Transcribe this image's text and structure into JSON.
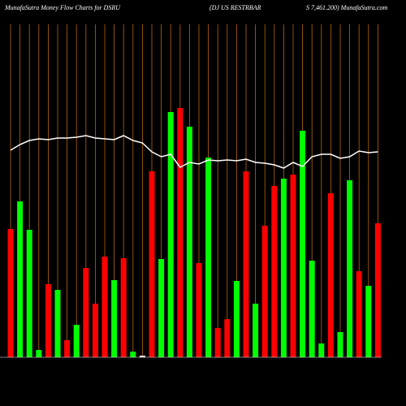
{
  "chart_data": {
    "type": "bar",
    "title": "MunafaSutra  Money Flow  Charts for DSRU",
    "subtitle": "(DJ US RESTRBAR",
    "title_right": "S 7,461.200) MunafaSutra.com",
    "categories": [
      null,
      null,
      null,
      null,
      null,
      null,
      null,
      null,
      null,
      null,
      null,
      null,
      null,
      null,
      null,
      null,
      null,
      null,
      null,
      null,
      null,
      null,
      null,
      null,
      null,
      null,
      null,
      null,
      null,
      null,
      null,
      null,
      null,
      null,
      null,
      null,
      null,
      null,
      null,
      null
    ],
    "values": [
      39.5,
      48,
      39.25,
      2.25,
      22.5,
      20.75,
      5.25,
      10,
      27.5,
      16.5,
      31,
      23.75,
      30.5,
      1.75,
      0.5,
      57.25,
      30.25,
      75.5,
      76.75,
      71,
      29,
      61.5,
      9,
      11.75,
      23.5,
      57.25,
      16.5,
      40.5,
      52.75,
      55,
      56.25,
      69.75,
      29.75,
      4.25,
      50.5,
      7.75,
      54.5,
      26.5,
      22,
      41.25
    ],
    "bar_colors": [
      "#ff0000",
      "#00ff00",
      "#00ff00",
      "#00ff00",
      "#ff0000",
      "#00ff00",
      "#ff0000",
      "#00ff00",
      "#ff0000",
      "#ff0000",
      "#ff0000",
      "#00ff00",
      "#ff0000",
      "#00ff00",
      "#ffffff",
      "#ff0000",
      "#00ff00",
      "#00ff00",
      "#ff0000",
      "#00ff00",
      "#ff0000",
      "#00ff00",
      "#ff0000",
      "#ff0000",
      "#00ff00",
      "#ff0000",
      "#00ff00",
      "#ff0000",
      "#ff0000",
      "#00ff00",
      "#ff0000",
      "#00ff00",
      "#00ff00",
      "#00ff00",
      "#ff0000",
      "#00ff00",
      "#00ff00",
      "#ff0000",
      "#00ff00",
      "#ff0000"
    ],
    "line": {
      "color": "#ffffff",
      "values": [
        63.75,
        65.5,
        66.75,
        67.25,
        67,
        67.5,
        67.5,
        67.75,
        68.25,
        67.5,
        67.25,
        67,
        68.25,
        66.75,
        66,
        63.25,
        61.75,
        62.5,
        58.5,
        60,
        59.5,
        60.75,
        60.5,
        60.75,
        60.5,
        61,
        60,
        59.75,
        59.25,
        58.25,
        60,
        58.75,
        61.75,
        62.5,
        62.5,
        61.25,
        61.75,
        63.5,
        63,
        63.25
      ]
    },
    "ylim": [
      0,
      100
    ],
    "grid_color": "#b8660b"
  }
}
